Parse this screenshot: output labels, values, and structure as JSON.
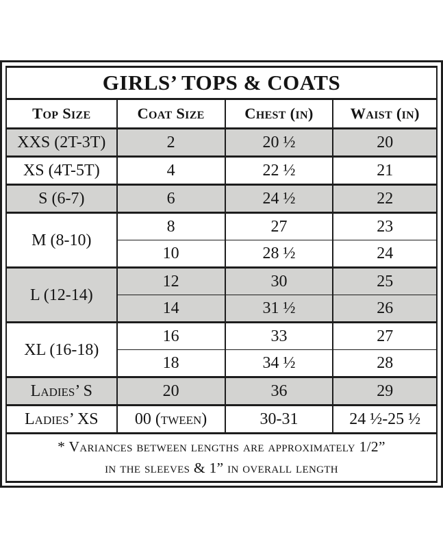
{
  "title": "GIRLS’ TOPS & COATS",
  "columns": [
    "Top Size",
    "Coat Size",
    "Chest (in)",
    "Waist (in)"
  ],
  "rows": [
    {
      "top_size": "XXS (2T-3T)",
      "shade": "gray",
      "sub": [
        [
          "2",
          "20 ½",
          "20"
        ]
      ]
    },
    {
      "top_size": "XS (4T-5T)",
      "shade": "white",
      "sub": [
        [
          "4",
          "22 ½",
          "21"
        ]
      ]
    },
    {
      "top_size": "S (6-7)",
      "shade": "gray",
      "sub": [
        [
          "6",
          "24 ½",
          "22"
        ]
      ]
    },
    {
      "top_size": "M (8-10)",
      "shade": "white",
      "sub": [
        [
          "8",
          "27",
          "23"
        ],
        [
          "10",
          "28 ½",
          "24"
        ]
      ]
    },
    {
      "top_size": "L (12-14)",
      "shade": "gray",
      "sub": [
        [
          "12",
          "30",
          "25"
        ],
        [
          "14",
          "31 ½",
          "26"
        ]
      ]
    },
    {
      "top_size": "XL (16-18)",
      "shade": "white",
      "sub": [
        [
          "16",
          "33",
          "27"
        ],
        [
          "18",
          "34 ½",
          "28"
        ]
      ]
    },
    {
      "top_size": "Ladies’ S",
      "shade": "gray",
      "sub": [
        [
          "20",
          "36",
          "29"
        ]
      ]
    },
    {
      "top_size": "Ladies’ XS",
      "shade": "white",
      "sub": [
        [
          "00 (tween)",
          "30-31",
          "24 ½-25 ½"
        ]
      ]
    }
  ],
  "footnote_line1": "* Variances between lengths are approximately 1/2”",
  "footnote_line2": "in the sleeves & 1” in overall length",
  "colors": {
    "row_shade": "#d3d3d1",
    "border": "#1d1d1d",
    "background": "#ffffff",
    "text": "#141414"
  }
}
